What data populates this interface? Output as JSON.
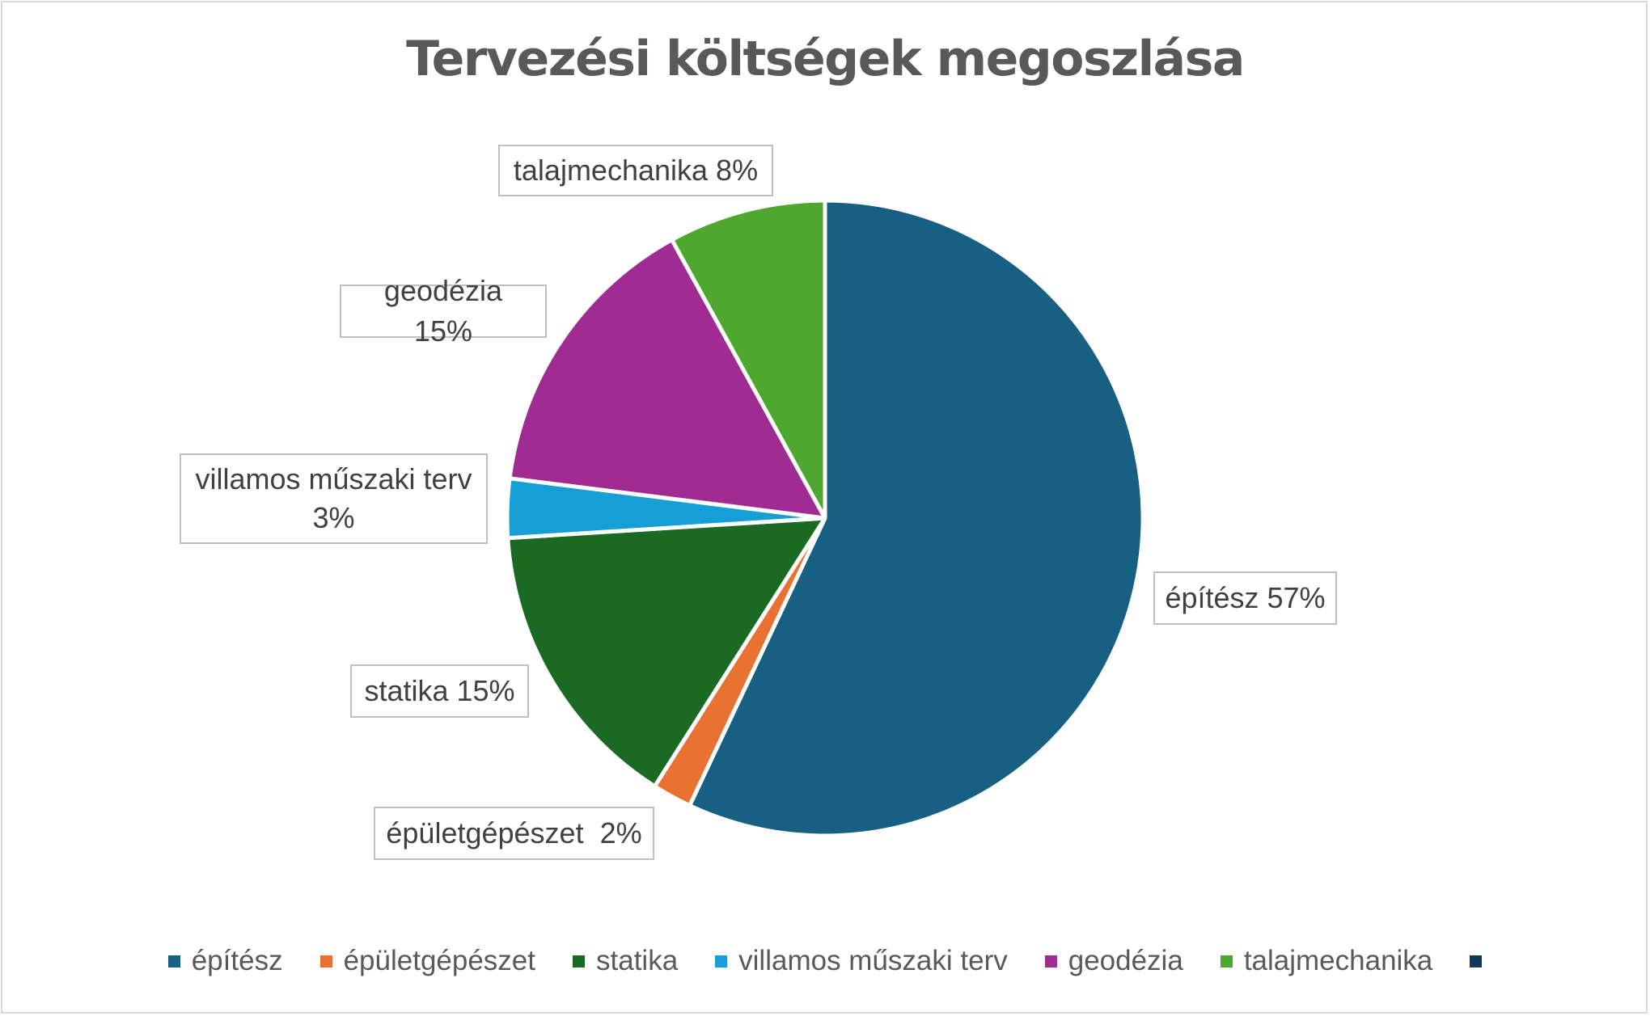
{
  "chart_data": {
    "type": "pie",
    "title": "Tervezési költségek megoszlása",
    "slices": [
      {
        "name": "építész",
        "value": 57,
        "label": "építész 57%",
        "color": "#176083"
      },
      {
        "name": "épületgépészet",
        "value": 2,
        "label": "épületgépészet  2%",
        "color": "#e97132"
      },
      {
        "name": "statika",
        "value": 15,
        "label": "statika 15%",
        "color": "#1b6a24"
      },
      {
        "name": "villamos műszaki terv",
        "value": 3,
        "label": "villamos műszaki terv 3%",
        "color": "#169ed6"
      },
      {
        "name": "geodézia",
        "value": 15,
        "label": "geodézia 15%",
        "color": "#a02b93"
      },
      {
        "name": "talajmechanika",
        "value": 8,
        "label": "talajmechanika 8%",
        "color": "#4ea72e"
      }
    ],
    "legend": [
      {
        "name": "építész",
        "color": "#176083"
      },
      {
        "name": "épületgépészet",
        "color": "#e97132"
      },
      {
        "name": "statika",
        "color": "#1b6a24"
      },
      {
        "name": "villamos műszaki terv",
        "color": "#169ed6"
      },
      {
        "name": "geodézia",
        "color": "#a02b93"
      },
      {
        "name": "talajmechanika",
        "color": "#4ea72e"
      },
      {
        "name": "",
        "color": "#0e3b5a"
      }
    ],
    "legend_position": "bottom"
  }
}
